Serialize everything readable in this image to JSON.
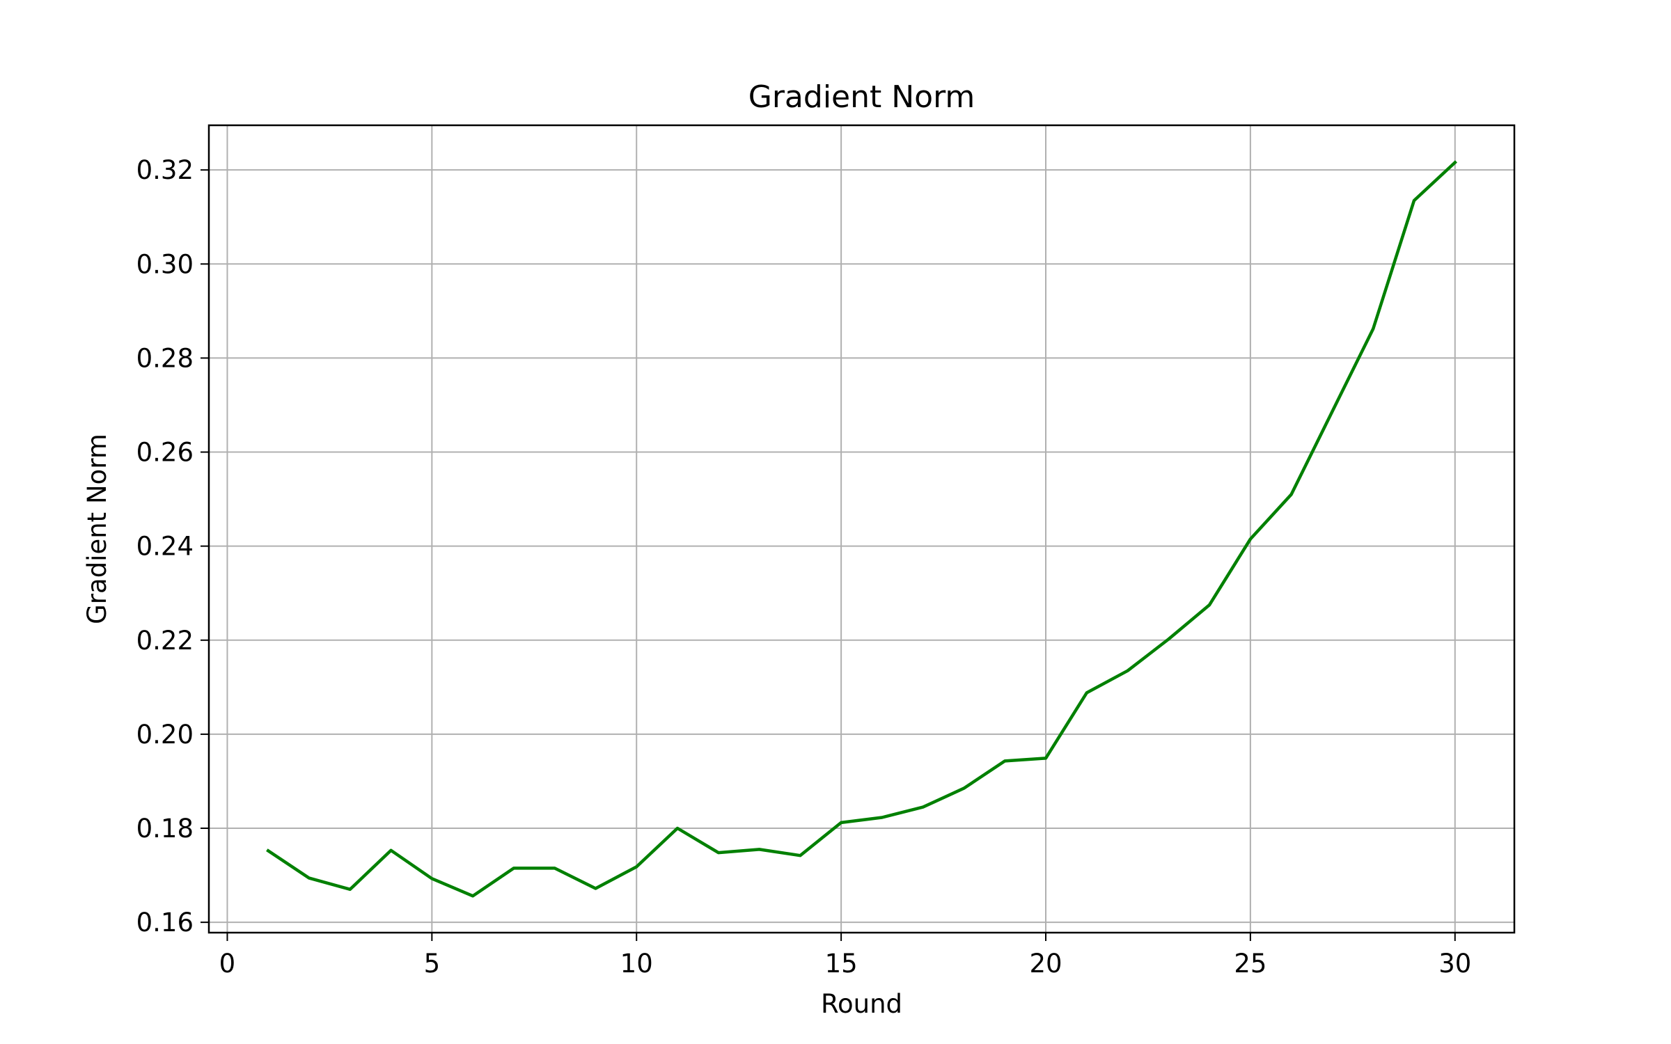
{
  "chart_data": {
    "type": "line",
    "title": "Gradient Norm",
    "xlabel": "Round",
    "ylabel": "Gradient Norm",
    "xlim": [
      -0.45,
      31.45
    ],
    "ylim": [
      0.1578,
      0.3295
    ],
    "x_ticks": [
      0,
      5,
      10,
      15,
      20,
      25,
      30
    ],
    "y_ticks": [
      0.16,
      0.18,
      0.2,
      0.22,
      0.24,
      0.26,
      0.28,
      0.3,
      0.32
    ],
    "y_tick_labels": [
      "0.16",
      "0.18",
      "0.20",
      "0.22",
      "0.24",
      "0.26",
      "0.28",
      "0.30",
      "0.32"
    ],
    "grid": true,
    "series": [
      {
        "color": "#008000",
        "x": [
          1,
          2,
          3,
          4,
          5,
          6,
          7,
          8,
          9,
          10,
          11,
          12,
          13,
          14,
          15,
          16,
          17,
          18,
          19,
          20,
          21,
          22,
          23,
          24,
          25,
          26,
          27,
          28,
          29,
          30
        ],
        "values": [
          0.1752,
          0.1694,
          0.167,
          0.1753,
          0.1693,
          0.1656,
          0.1715,
          0.1715,
          0.1672,
          0.1718,
          0.18,
          0.1748,
          0.1755,
          0.1742,
          0.1812,
          0.1823,
          0.1845,
          0.1885,
          0.1943,
          0.1949,
          0.2088,
          0.2135,
          0.2202,
          0.2275,
          0.2415,
          0.251,
          0.2686,
          0.2862,
          0.3135,
          0.3216
        ]
      }
    ]
  }
}
